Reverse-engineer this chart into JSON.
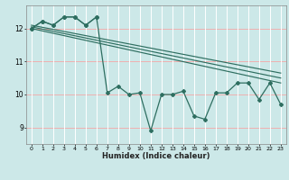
{
  "title": "",
  "xlabel": "Humidex (Indice chaleur)",
  "ylabel": "",
  "background_color": "#cce8e8",
  "grid_h_color": "#f0b0b0",
  "grid_v_color": "#ffffff",
  "line_color": "#2e6e60",
  "xlim": [
    -0.5,
    23.5
  ],
  "ylim": [
    8.5,
    12.7
  ],
  "yticks": [
    9,
    10,
    11,
    12
  ],
  "xticks": [
    0,
    1,
    2,
    3,
    4,
    5,
    6,
    7,
    8,
    9,
    10,
    11,
    12,
    13,
    14,
    15,
    16,
    17,
    18,
    19,
    20,
    21,
    22,
    23
  ],
  "main_series": [
    12.0,
    12.22,
    12.1,
    12.35,
    12.35,
    12.1,
    12.35,
    10.05,
    10.25,
    10.0,
    10.05,
    8.9,
    10.0,
    10.0,
    10.1,
    9.35,
    9.25,
    10.05,
    10.05,
    10.35,
    10.35,
    9.85,
    10.35,
    9.7
  ],
  "trend_lines": [
    {
      "x": [
        0,
        23
      ],
      "y": [
        12.0,
        10.35
      ]
    },
    {
      "x": [
        0,
        23
      ],
      "y": [
        12.05,
        10.5
      ]
    },
    {
      "x": [
        0,
        23
      ],
      "y": [
        12.1,
        10.65
      ]
    }
  ],
  "bump_series": [
    12.0,
    12.22,
    12.1,
    12.35,
    12.35,
    12.1,
    12.35
  ]
}
